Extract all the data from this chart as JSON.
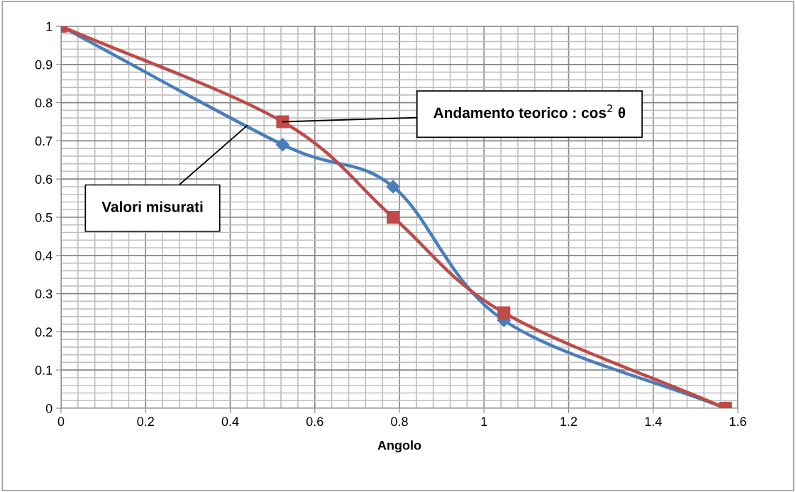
{
  "chart_data": {
    "type": "line",
    "xlabel": "Angolo",
    "x": [
      0,
      0.524,
      0.785,
      1.047,
      1.571
    ],
    "series": [
      {
        "color": "#4a7ebb",
        "marker": "diamond",
        "values": [
          1,
          0.69,
          0.58,
          0.23,
          0
        ]
      },
      {
        "color": "#be4b48",
        "marker": "square",
        "values": [
          1,
          0.75,
          0.5,
          0.25,
          0
        ]
      }
    ],
    "xlim": [
      0,
      1.6
    ],
    "xticks": [
      0,
      0.2,
      0.4,
      0.6,
      0.8,
      1,
      1.2,
      1.4,
      1.6
    ],
    "ylim": [
      0,
      1
    ],
    "yticks": [
      0,
      0.1,
      0.2,
      0.3,
      0.4,
      0.5,
      0.6,
      0.7,
      0.8,
      0.9,
      1
    ],
    "grid": true,
    "annotations": [
      {
        "text": "Valori misurati",
        "x": 0.44,
        "y": 0.74
      },
      {
        "text": "Andamento teorico : cos$^{2}$ θ",
        "x": 0.524,
        "y": 0.75
      }
    ]
  }
}
